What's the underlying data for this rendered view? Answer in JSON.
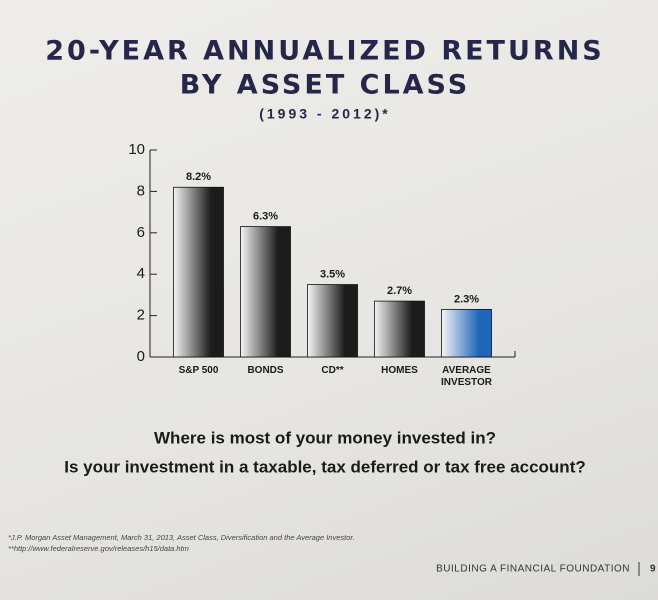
{
  "chart_data": {
    "type": "bar",
    "title": [
      "20-YEAR ANNUALIZED RETURNS",
      "BY ASSET CLASS"
    ],
    "subtitle": "(1993 - 2012)*",
    "categories": [
      "S&P 500",
      "BONDS",
      "CD**",
      "HOMES",
      "AVERAGE INVESTOR"
    ],
    "values": [
      8.2,
      6.3,
      3.5,
      2.7,
      2.3
    ],
    "value_labels": [
      "8.2%",
      "6.3%",
      "3.5%",
      "2.7%",
      "2.3%"
    ],
    "colors": [
      "#1c1c1c",
      "#1c1c1c",
      "#1c1c1c",
      "#1c1c1c",
      "#1f66b8"
    ],
    "ylim": [
      0,
      10
    ],
    "yticks": [
      0,
      2,
      4,
      6,
      8,
      10
    ],
    "grid": false
  },
  "questions": [
    "Where is most of your money invested in?",
    "Is your investment in a taxable, tax deferred or tax free account?"
  ],
  "footnotes": [
    "*J.P. Morgan Asset Management, March 31, 2013, Asset Class, Diversification and the Average Investor.",
    "**http://www.federalreserve.gov/releases/h15/data.htm"
  ],
  "footer": {
    "text": "BUILDING A FINANCIAL FOUNDATION",
    "page": 9
  }
}
